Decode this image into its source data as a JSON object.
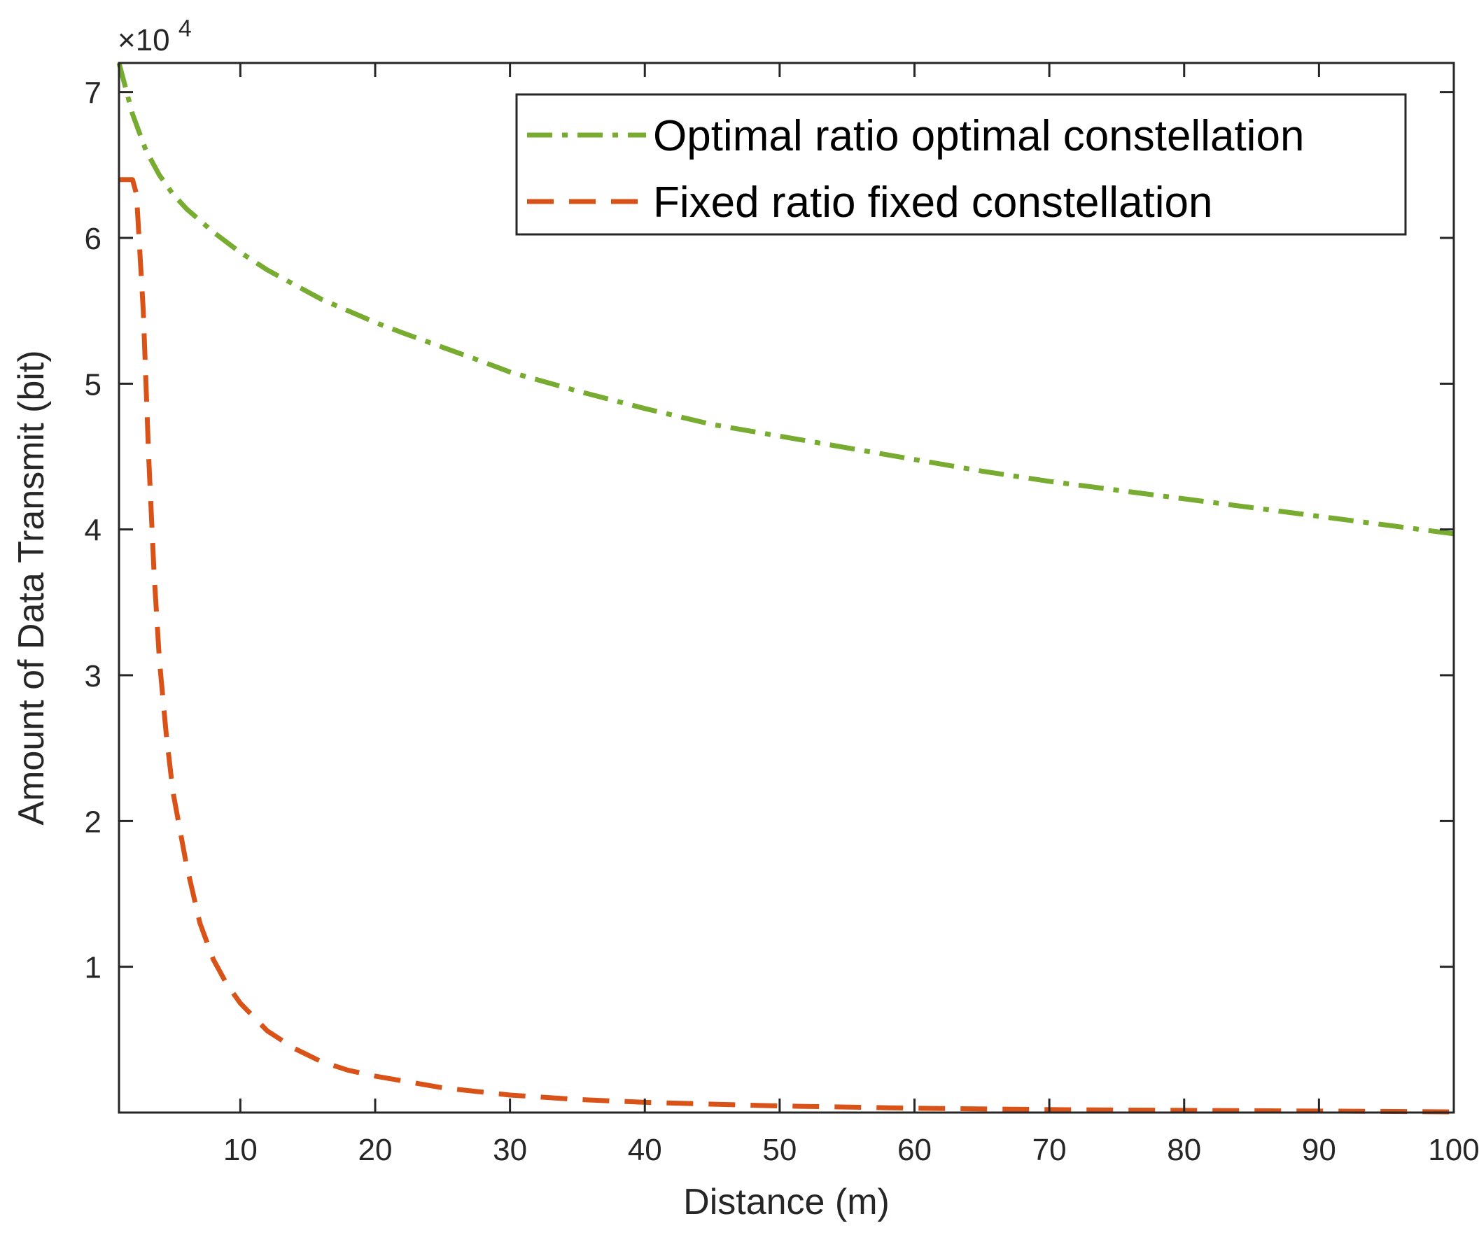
{
  "chart_data": {
    "type": "line",
    "title": "",
    "xlabel": "Distance (m)",
    "ylabel": "Amount of Data Transmit (bit)",
    "xlim": [
      1,
      100
    ],
    "ylim": [
      0,
      72000
    ],
    "x_ticks": [
      10,
      20,
      30,
      40,
      50,
      60,
      70,
      80,
      90,
      100
    ],
    "y_ticks": [
      1,
      2,
      3,
      4,
      5,
      6,
      7
    ],
    "y_multiplier_base": "×10",
    "y_multiplier_exp": "4",
    "grid": false,
    "legend_position": "top-right",
    "series": [
      {
        "name": "Optimal ratio optimal constellation",
        "color": "#77ac30",
        "style": "dash-dot",
        "points": [
          [
            1,
            72000
          ],
          [
            2,
            68500
          ],
          [
            3,
            66000
          ],
          [
            4,
            64300
          ],
          [
            5,
            63000
          ],
          [
            6,
            62000
          ],
          [
            7,
            61200
          ],
          [
            8,
            60400
          ],
          [
            9,
            59700
          ],
          [
            10,
            59000
          ],
          [
            12,
            57800
          ],
          [
            14,
            56800
          ],
          [
            16,
            55800
          ],
          [
            18,
            55000
          ],
          [
            20,
            54200
          ],
          [
            22,
            53500
          ],
          [
            25,
            52500
          ],
          [
            28,
            51500
          ],
          [
            30,
            50800
          ],
          [
            35,
            49500
          ],
          [
            40,
            48300
          ],
          [
            45,
            47200
          ],
          [
            50,
            46400
          ],
          [
            55,
            45600
          ],
          [
            60,
            44800
          ],
          [
            65,
            44000
          ],
          [
            70,
            43300
          ],
          [
            75,
            42700
          ],
          [
            80,
            42100
          ],
          [
            85,
            41500
          ],
          [
            90,
            40900
          ],
          [
            95,
            40300
          ],
          [
            100,
            39700
          ]
        ]
      },
      {
        "name": "Fixed ratio fixed constellation",
        "color": "#d95319",
        "style": "dashed",
        "points": [
          [
            1,
            64000
          ],
          [
            2,
            64000
          ],
          [
            2.3,
            63000
          ],
          [
            2.8,
            55000
          ],
          [
            3.2,
            45000
          ],
          [
            3.6,
            37000
          ],
          [
            4,
            31000
          ],
          [
            4.5,
            26000
          ],
          [
            5,
            22000
          ],
          [
            6,
            17000
          ],
          [
            7,
            13000
          ],
          [
            8,
            10500
          ],
          [
            9,
            8800
          ],
          [
            10,
            7500
          ],
          [
            12,
            5600
          ],
          [
            14,
            4400
          ],
          [
            16,
            3500
          ],
          [
            18,
            2900
          ],
          [
            20,
            2500
          ],
          [
            25,
            1700
          ],
          [
            30,
            1200
          ],
          [
            35,
            900
          ],
          [
            40,
            700
          ],
          [
            50,
            450
          ],
          [
            60,
            300
          ],
          [
            70,
            200
          ],
          [
            80,
            150
          ],
          [
            90,
            100
          ],
          [
            100,
            50
          ]
        ]
      }
    ]
  }
}
